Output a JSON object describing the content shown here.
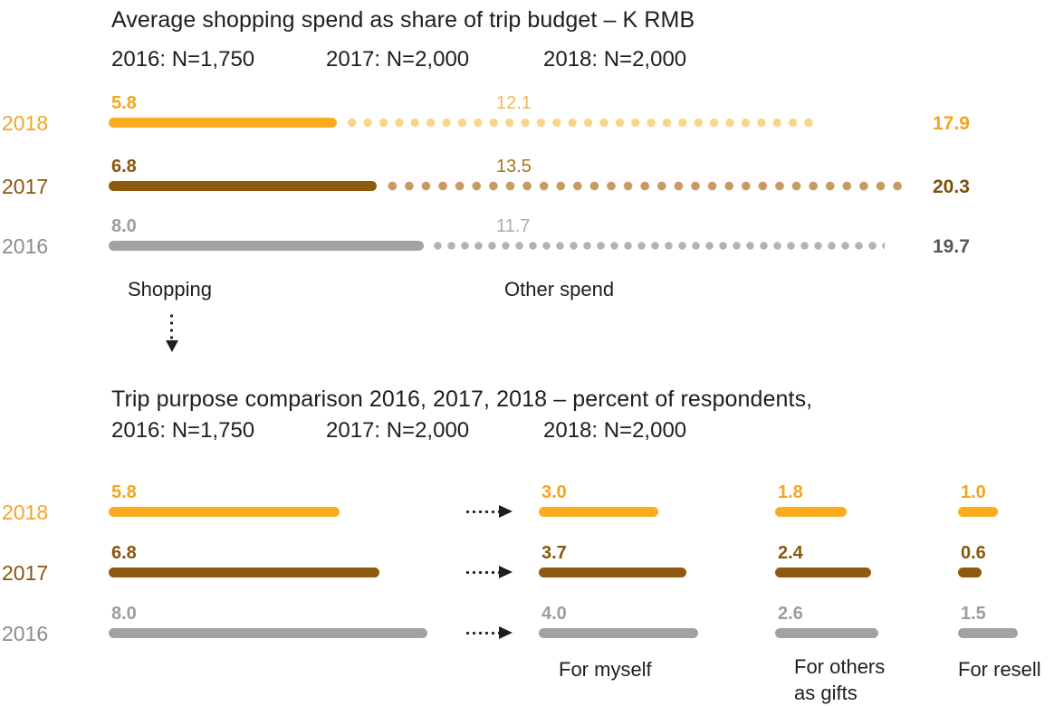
{
  "colors": {
    "text": "#1E1E1E",
    "arrow": "#1E1E1E",
    "background": "#FFFFFF",
    "rows": [
      {
        "bar": "#FBAC1E",
        "dots": "#FCD28C",
        "label": "#F1A52B",
        "value": "#F4A51D",
        "mid": "#F4B757",
        "total": "#F5A41F"
      },
      {
        "bar": "#8E5A0E",
        "dots": "#CB9A62",
        "label": "#8A5512",
        "value": "#89560E",
        "mid": "#A1741F",
        "total": "#7C4E08"
      },
      {
        "bar": "#A2A2A2",
        "dots": "#B3B3B3",
        "label": "#8C8C8C",
        "value": "#9D9D9D",
        "mid": "#ADADAD",
        "total": "#565656"
      }
    ]
  },
  "chart_data": [
    {
      "type": "bar",
      "orientation": "horizontal-stacked",
      "title": "Average shopping spend as share of trip budget – K RMB",
      "subtitle_parts": [
        "2016: N=1,750",
        "2017: N=2,000",
        "2018: N=2,000"
      ],
      "unit": "K RMB",
      "categories": [
        "2018",
        "2017",
        "2016"
      ],
      "series": [
        {
          "name": "Shopping",
          "style": "solid",
          "values": [
            5.8,
            6.8,
            8.0
          ]
        },
        {
          "name": "Other spend",
          "style": "dotted",
          "values": [
            12.1,
            13.5,
            11.7
          ]
        }
      ],
      "totals": [
        17.9,
        20.3,
        19.7
      ],
      "xlim": [
        0,
        20.3
      ],
      "grid": false,
      "legend": "inline-below"
    },
    {
      "type": "bar",
      "orientation": "horizontal-grouped",
      "title": "Trip purpose comparison 2016, 2017, 2018 – percent of respondents,",
      "subtitle_parts": [
        "2016: N=1,750",
        "2017: N=2,000",
        "2018: N=2,000"
      ],
      "categories": [
        "2018",
        "2017",
        "2016"
      ],
      "groups": [
        {
          "label": "",
          "values": [
            5.8,
            6.8,
            8.0
          ]
        },
        {
          "label": "For myself",
          "values": [
            3.0,
            3.7,
            4.0
          ]
        },
        {
          "label": "For others as gifts",
          "values": [
            1.8,
            2.4,
            2.6
          ]
        },
        {
          "label": "For resell",
          "values": [
            1.0,
            0.6,
            1.5
          ]
        }
      ],
      "grid": false
    }
  ]
}
